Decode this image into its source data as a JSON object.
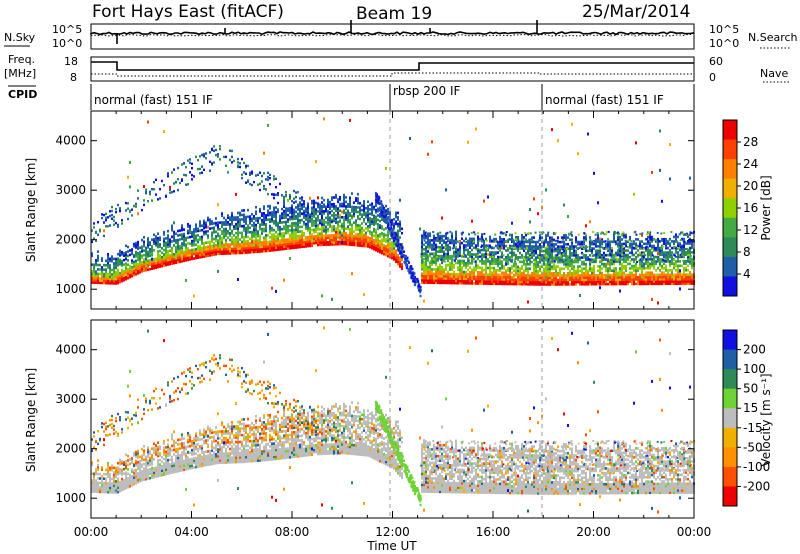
{
  "header": {
    "station": "Fort Hays East (fitACF)",
    "beam": "Beam 19",
    "date": "25/Mar/2014"
  },
  "panels": {
    "nsky_label": "N.Sky",
    "nsky_ticks": [
      "10^5",
      "10^0"
    ],
    "nsearch_label": "N.Search",
    "nsearch_ticks": [
      "10^5",
      "10^0"
    ],
    "freq_label_top": "Freq.",
    "freq_label_unit": "[MHz]",
    "freq_ticks": [
      "18",
      "8"
    ],
    "nave_label": "Nave",
    "nave_ticks": [
      "60",
      "0"
    ],
    "cpid_label": "CPID"
  },
  "cpid_modes": [
    {
      "label": "normal (fast) 151 IF",
      "start_hour": 0.0,
      "end_hour": 13.0
    },
    {
      "label": "rbsp 200 IF",
      "start_hour": 13.0,
      "end_hour": 18.0
    },
    {
      "label": "normal (fast) 151 IF",
      "start_hour": 18.0,
      "end_hour": 24.0
    }
  ],
  "colors": {
    "power": [
      "#1010e0",
      "#1f5fa8",
      "#2e8b57",
      "#44aa44",
      "#8fd000",
      "#f0b000",
      "#ff8000",
      "#ff4000",
      "#ee0000"
    ],
    "velocity": [
      "#ee0000",
      "#ff5000",
      "#ff9000",
      "#f0b000",
      "#bdbdbd",
      "#6dd336",
      "#2e8b57",
      "#1f5fa8",
      "#1010e0"
    ]
  },
  "chart_data": [
    {
      "type": "heatmap",
      "title": "Power",
      "ylabel": "Slant Range [km]",
      "xlabel": "",
      "x_ticks": [
        "00:00",
        "04:00",
        "08:00",
        "12:00",
        "16:00",
        "20:00",
        "00:00"
      ],
      "xlim_hours": [
        0,
        24
      ],
      "y_ticks": [
        "1000",
        "2000",
        "3000",
        "4000"
      ],
      "ylim": [
        600,
        4600
      ],
      "colorbar": {
        "label": "Power [dB]",
        "ticks": [
          "4",
          "8",
          "12",
          "16",
          "20",
          "24",
          "28"
        ],
        "range": [
          0,
          30
        ]
      },
      "lower_edge_km": [
        [
          0.0,
          1120
        ],
        [
          1.0,
          1100
        ],
        [
          2.0,
          1350
        ],
        [
          3.0,
          1480
        ],
        [
          4.0,
          1600
        ],
        [
          5.0,
          1700
        ],
        [
          6.0,
          1720
        ],
        [
          7.0,
          1760
        ],
        [
          8.0,
          1820
        ],
        [
          9.0,
          1880
        ],
        [
          10.0,
          1900
        ],
        [
          11.0,
          1850
        ],
        [
          12.0,
          1600
        ],
        [
          12.5,
          1300
        ],
        [
          13.0,
          1050
        ],
        [
          13.1,
          1120
        ],
        [
          18.0,
          1080
        ],
        [
          24.0,
          1100
        ]
      ]
    },
    {
      "type": "heatmap",
      "title": "Velocity",
      "ylabel": "Slant Range [km]",
      "xlabel": "Time UT",
      "x_ticks": [
        "00:00",
        "04:00",
        "08:00",
        "12:00",
        "16:00",
        "20:00",
        "00:00"
      ],
      "xlim_hours": [
        0,
        24
      ],
      "y_ticks": [
        "1000",
        "2000",
        "3000",
        "4000"
      ],
      "ylim": [
        600,
        4600
      ],
      "colorbar": {
        "label": "Velocity [m s⁻¹]",
        "ticks": [
          "200",
          "100",
          "50",
          "15",
          "-15",
          "-50",
          "-100",
          "-200"
        ],
        "range": [
          -250,
          250
        ]
      }
    }
  ]
}
